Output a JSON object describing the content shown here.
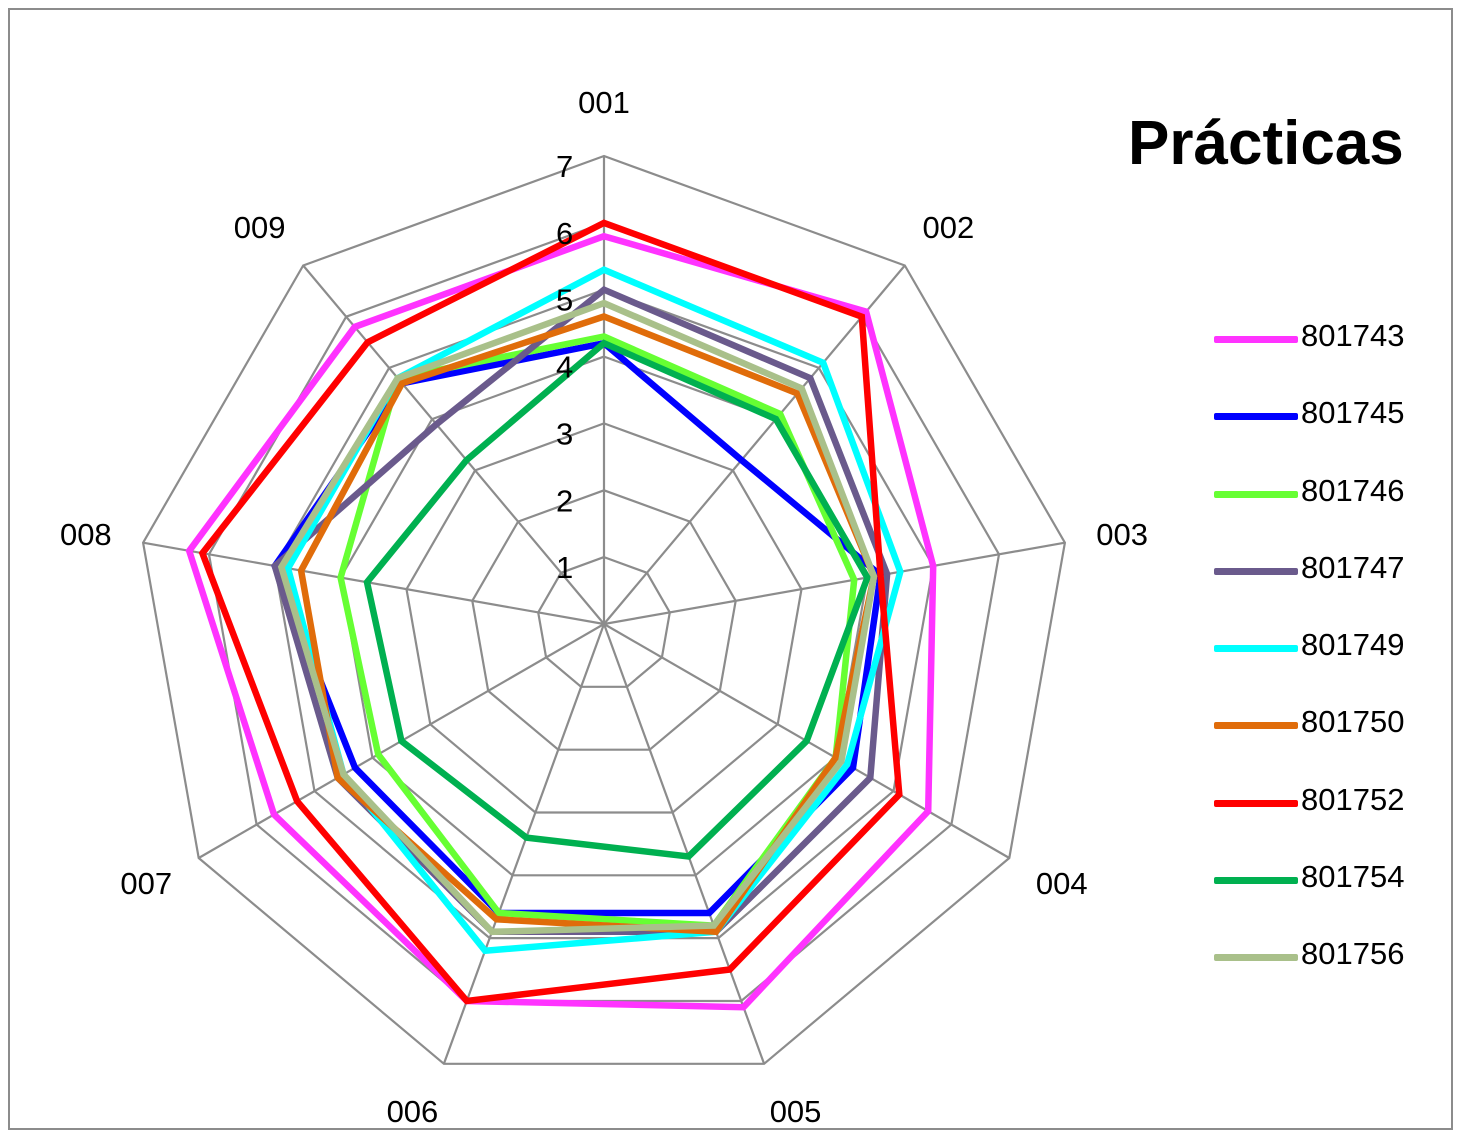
{
  "chart_data": {
    "type": "radar",
    "title": "Prácticas",
    "categories": [
      "001",
      "002",
      "003",
      "004",
      "005",
      "006",
      "007",
      "008",
      "009"
    ],
    "r_ticks": [
      "1",
      "2",
      "3",
      "4",
      "5",
      "6",
      "7"
    ],
    "rlim": [
      0,
      7
    ],
    "grid": true,
    "legend_position": "right",
    "series": [
      {
        "name": "801743",
        "color": "#ff33ff",
        "values": [
          5.8,
          6.1,
          5.0,
          5.6,
          6.1,
          6.0,
          5.7,
          6.3,
          5.8
        ]
      },
      {
        "name": "801745",
        "color": "#0000ff",
        "values": [
          4.2,
          3.2,
          4.2,
          4.3,
          4.6,
          4.6,
          4.3,
          5.0,
          4.7
        ]
      },
      {
        "name": "801746",
        "color": "#66ff33",
        "values": [
          4.3,
          4.1,
          3.8,
          4.0,
          4.8,
          4.6,
          3.9,
          4.0,
          4.8
        ]
      },
      {
        "name": "801747",
        "color": "#6a5a8c",
        "values": [
          5.0,
          4.8,
          4.3,
          4.6,
          4.9,
          4.9,
          4.6,
          5.0,
          3.9
        ]
      },
      {
        "name": "801749",
        "color": "#00ffff",
        "values": [
          5.3,
          5.1,
          4.5,
          4.2,
          4.9,
          5.2,
          4.5,
          4.8,
          4.8
        ]
      },
      {
        "name": "801750",
        "color": "#e06c0a",
        "values": [
          4.6,
          4.5,
          4.1,
          4.0,
          4.9,
          4.7,
          4.6,
          4.6,
          4.7
        ]
      },
      {
        "name": "801752",
        "color": "#ff0000",
        "values": [
          6.0,
          6.0,
          4.2,
          5.1,
          5.5,
          6.0,
          5.3,
          6.1,
          5.5
        ]
      },
      {
        "name": "801754",
        "color": "#00b050",
        "values": [
          4.2,
          4.0,
          4.0,
          3.5,
          3.7,
          3.4,
          3.5,
          3.6,
          3.2
        ]
      },
      {
        "name": "801756",
        "color": "#a9c08a",
        "values": [
          4.8,
          4.6,
          4.1,
          4.1,
          4.8,
          4.9,
          4.5,
          4.9,
          4.8
        ]
      }
    ]
  }
}
